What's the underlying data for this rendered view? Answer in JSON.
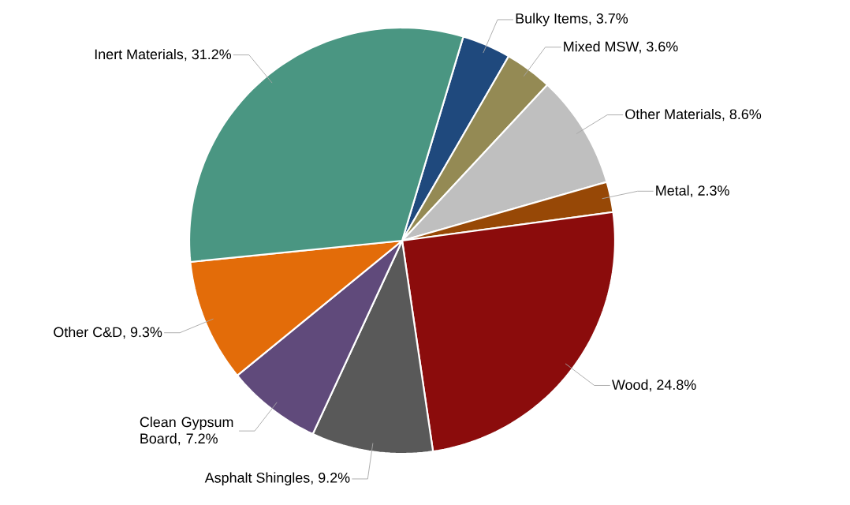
{
  "chart_data": {
    "type": "pie",
    "categories": [
      "Bulky Items, 3.7%",
      "Mixed MSW, 3.6%",
      "Other Materials, 8.6%",
      "Metal, 2.3%",
      "Wood, 24.8%",
      "Asphalt Shingles, 9.2%",
      "Clean Gypsum Board, 7.2%",
      "Other C&D, 9.3%",
      "Inert Materials, 31.2%"
    ],
    "values": [
      3.7,
      3.6,
      8.6,
      2.3,
      24.8,
      9.2,
      7.2,
      9.3,
      31.2
    ],
    "colors": [
      "#1f497d",
      "#948a54",
      "#bfbfbf",
      "#974806",
      "#8b0c0c",
      "#595959",
      "#604a7b",
      "#e36c09",
      "#4a9682"
    ]
  }
}
